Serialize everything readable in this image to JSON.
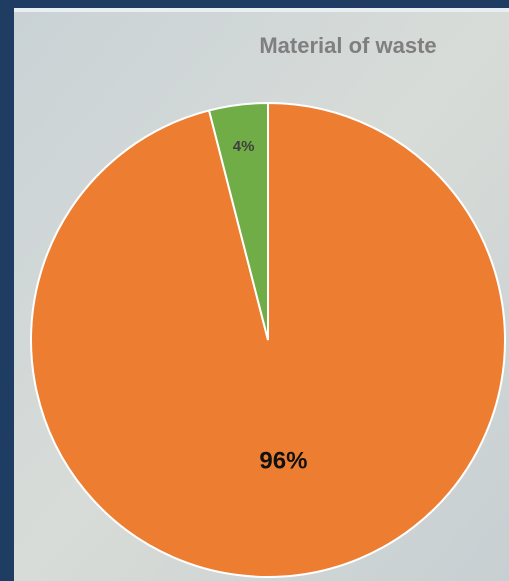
{
  "chart_data": {
    "type": "pie",
    "title": "Material of waste",
    "values": [
      96,
      4
    ],
    "value_labels": [
      "96%",
      "4%"
    ],
    "colors": [
      "#ed7d31",
      "#70ad47"
    ]
  }
}
